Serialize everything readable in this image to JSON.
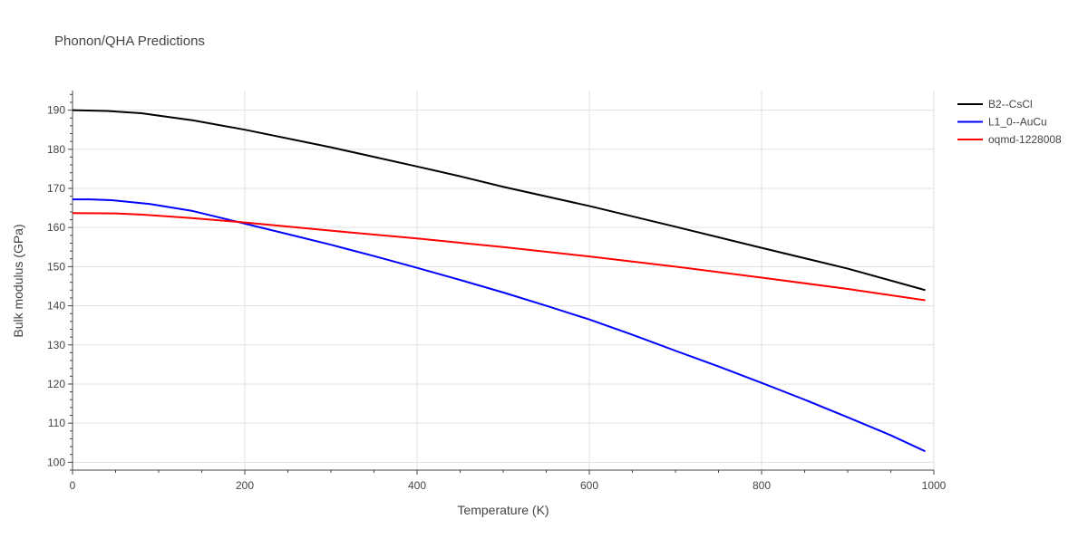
{
  "chart_data": {
    "type": "line",
    "title": "Phonon/QHA Predictions",
    "xlabel": "Temperature (K)",
    "ylabel": "Bulk modulus (GPa)",
    "xlim": [
      0,
      1000
    ],
    "ylim": [
      98,
      195
    ],
    "x_ticks": [
      0,
      200,
      400,
      600,
      800,
      1000
    ],
    "y_ticks": [
      100,
      110,
      120,
      130,
      140,
      150,
      160,
      170,
      180,
      190
    ],
    "grid": true,
    "legend_position": "top-right",
    "series": [
      {
        "name": "B2--CsCl",
        "color": "#000000",
        "x": [
          0,
          40,
          80,
          140,
          200,
          300,
          400,
          450,
          500,
          600,
          700,
          800,
          900,
          990
        ],
        "y": [
          190.0,
          189.8,
          189.2,
          187.4,
          185.0,
          180.5,
          175.6,
          173.1,
          170.4,
          165.5,
          160.2,
          154.8,
          149.5,
          144.0
        ]
      },
      {
        "name": "L1_0--AuCu",
        "color": "#0000ff",
        "x": [
          0,
          20,
          45,
          90,
          140,
          200,
          250,
          300,
          350,
          400,
          450,
          500,
          550,
          600,
          650,
          700,
          750,
          800,
          850,
          900,
          950,
          990
        ],
        "y": [
          167.2,
          167.2,
          167.0,
          166.0,
          164.2,
          161.0,
          158.3,
          155.6,
          152.7,
          149.7,
          146.6,
          143.4,
          140.0,
          136.5,
          132.6,
          128.5,
          124.5,
          120.3,
          116.0,
          111.5,
          106.9,
          102.8
        ]
      },
      {
        "name": "oqmd-1228008",
        "color": "#ff0000",
        "x": [
          0,
          50,
          80,
          140,
          200,
          300,
          400,
          500,
          600,
          700,
          800,
          900,
          990
        ],
        "y": [
          163.7,
          163.6,
          163.3,
          162.4,
          161.3,
          159.2,
          157.2,
          155.0,
          152.6,
          150.0,
          147.2,
          144.3,
          141.4
        ]
      }
    ]
  }
}
